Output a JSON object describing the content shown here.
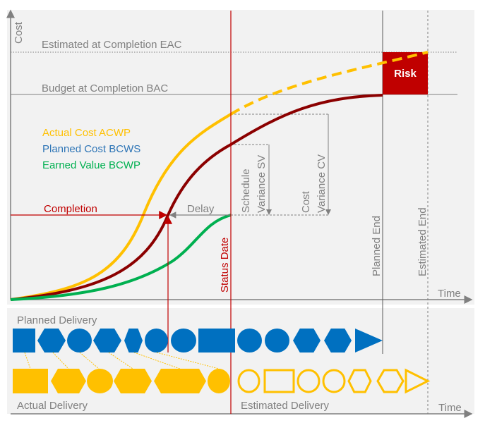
{
  "axes": {
    "y_label": "Cost",
    "x_label": "Time",
    "x_label_bottom": "Time"
  },
  "lines": {
    "eac": "Estimated at Completion EAC",
    "bac": "Budget at Completion BAC"
  },
  "legend": {
    "actual": "Actual Cost ACWP",
    "planned": "Planned Cost BCWS",
    "earned": "Earned Value BCWP"
  },
  "annotations": {
    "completion": "Completion",
    "delay": "Delay",
    "sv_line1": "Schedule",
    "sv_line2": "Variance SV",
    "cv_line1": "Cost",
    "cv_line2": "Variance CV",
    "status_date": "Status Date",
    "planned_end": "Planned End",
    "estimated_end": "Estimated End",
    "risk": "Risk"
  },
  "delivery": {
    "planned": "Planned Delivery",
    "actual": "Actual Delivery",
    "estimated": "Estimated Delivery",
    "planned_shapes": [
      "square",
      "hexagon",
      "circle",
      "hexagon",
      "hexagon",
      "circle",
      "circle",
      "rectangle",
      "circle",
      "circle",
      "hexagon",
      "hexagon",
      "triangle"
    ],
    "actual_shapes": [
      "square",
      "hexagon",
      "circle",
      "hexagon",
      "hexagon",
      "circle"
    ],
    "estimated_shapes": [
      "circle",
      "rectangle",
      "circle",
      "circle",
      "hexagon",
      "hexagon",
      "triangle"
    ]
  },
  "colors": {
    "actual": "#ffc000",
    "planned": "#8b0000",
    "earned": "#00b050",
    "planned_text": "#2e75b6",
    "red": "#c00000",
    "blue_shape": "#0070c0",
    "gray": "#808080",
    "panel": "#f2f2f2"
  }
}
